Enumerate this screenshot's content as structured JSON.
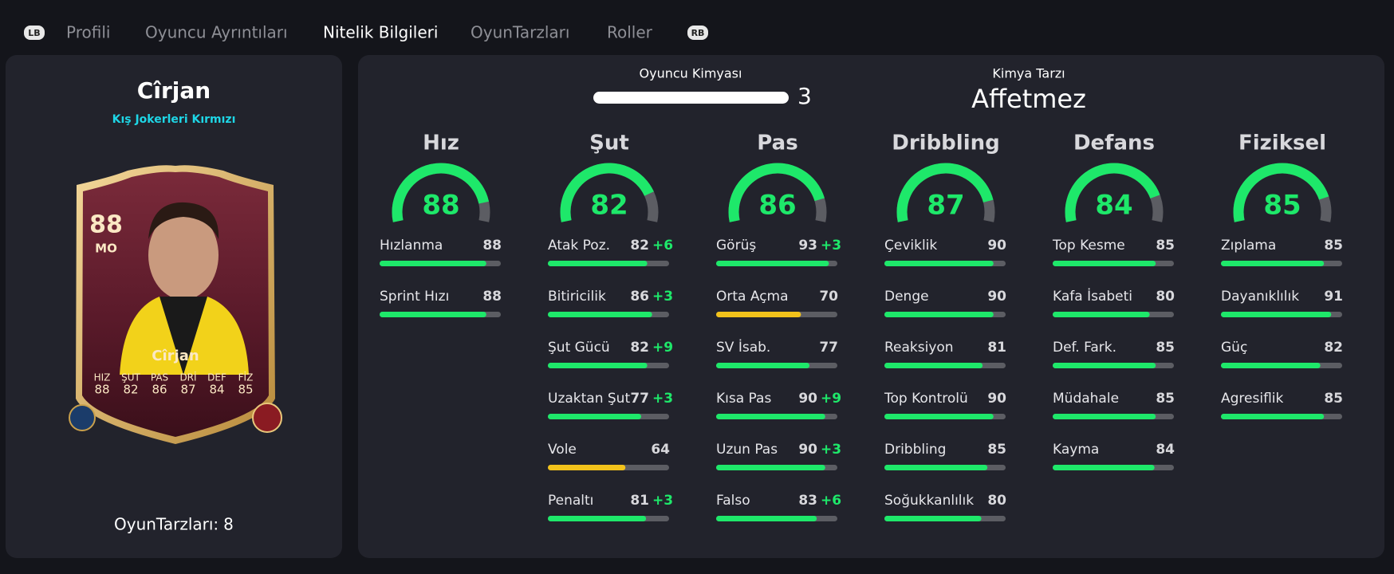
{
  "nav": {
    "left_button": "LB",
    "tabs": [
      "Profili",
      "Oyuncu Ayrıntıları",
      "Nitelik Bilgileri",
      "OyunTarzları",
      "Roller"
    ],
    "right_button": "RB"
  },
  "player": {
    "name": "Cîrjan",
    "card_type": "Kış Jokerleri Kırmızı",
    "rating": 88,
    "position": "MO",
    "card_name": "Cîrjan",
    "card_stats": [
      {
        "label": "HIZ",
        "value": 88
      },
      {
        "label": "ŞUT",
        "value": 82
      },
      {
        "label": "PAS",
        "value": 86
      },
      {
        "label": "DRİ",
        "value": 87
      },
      {
        "label": "DEF",
        "value": 84
      },
      {
        "label": "FİZ",
        "value": 85
      }
    ],
    "playstyles_label": "OyunTarzları:",
    "playstyles": 8
  },
  "chemistry": {
    "label": "Oyuncu Kimyası",
    "value": 3
  },
  "chemistry_style": {
    "label": "Kimya Tarzı",
    "value": "Affetmez"
  },
  "bar_colors": {
    "high": "#1ee86a",
    "low": "#f2c21b"
  },
  "groups": [
    {
      "name": "Hız",
      "value": 88,
      "attributes": [
        {
          "name": "Hızlanma",
          "value": 88
        },
        {
          "name": "Sprint Hızı",
          "value": 88
        }
      ]
    },
    {
      "name": "Şut",
      "value": 82,
      "attributes": [
        {
          "name": "Atak Poz.",
          "value": 82,
          "boost": "+6"
        },
        {
          "name": "Bitiricilik",
          "value": 86,
          "boost": "+3"
        },
        {
          "name": "Şut Gücü",
          "value": 82,
          "boost": "+9"
        },
        {
          "name": "Uzaktan Şut",
          "value": 77,
          "boost": "+3"
        },
        {
          "name": "Vole",
          "value": 64
        },
        {
          "name": "Penaltı",
          "value": 81,
          "boost": "+3"
        }
      ]
    },
    {
      "name": "Pas",
      "value": 86,
      "attributes": [
        {
          "name": "Görüş",
          "value": 93,
          "boost": "+3"
        },
        {
          "name": "Orta Açma",
          "value": 70
        },
        {
          "name": "SV İsab.",
          "value": 77
        },
        {
          "name": "Kısa Pas",
          "value": 90,
          "boost": "+9"
        },
        {
          "name": "Uzun Pas",
          "value": 90,
          "boost": "+3"
        },
        {
          "name": "Falso",
          "value": 83,
          "boost": "+6"
        }
      ]
    },
    {
      "name": "Dribbling",
      "value": 87,
      "attributes": [
        {
          "name": "Çeviklik",
          "value": 90
        },
        {
          "name": "Denge",
          "value": 90
        },
        {
          "name": "Reaksiyon",
          "value": 81
        },
        {
          "name": "Top Kontrolü",
          "value": 90
        },
        {
          "name": "Dribbling",
          "value": 85
        },
        {
          "name": "Soğukkanlılık",
          "value": 80
        }
      ]
    },
    {
      "name": "Defans",
      "value": 84,
      "attributes": [
        {
          "name": "Top Kesme",
          "value": 85
        },
        {
          "name": "Kafa İsabeti",
          "value": 80
        },
        {
          "name": "Def. Fark.",
          "value": 85
        },
        {
          "name": "Müdahale",
          "value": 85
        },
        {
          "name": "Kayma",
          "value": 84
        }
      ]
    },
    {
      "name": "Fiziksel",
      "value": 85,
      "attributes": [
        {
          "name": "Zıplama",
          "value": 85
        },
        {
          "name": "Dayanıklılık",
          "value": 91
        },
        {
          "name": "Güç",
          "value": 82
        },
        {
          "name": "Agresiflik",
          "value": 85
        }
      ]
    }
  ]
}
